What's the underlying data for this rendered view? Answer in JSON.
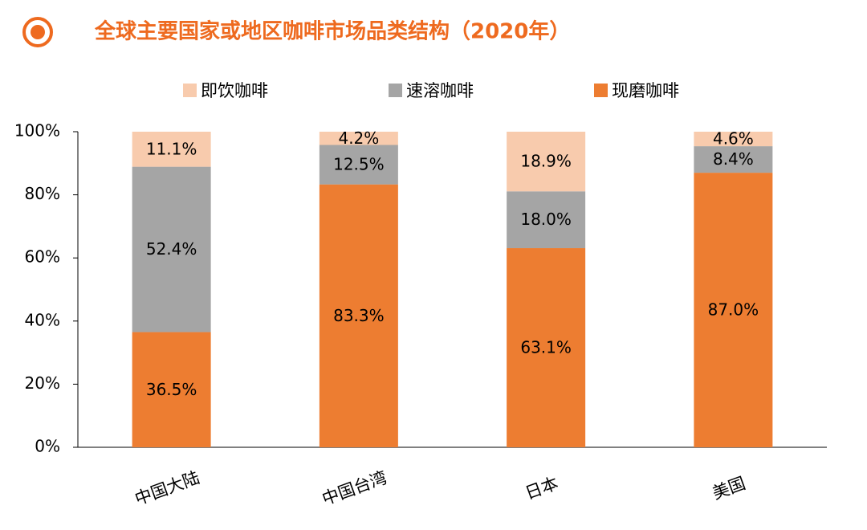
{
  "chart_data": {
    "type": "stacked_bar",
    "title": "全球主要国家或地区咖啡市场品类结构（2020年）",
    "categories": [
      "中国大陆",
      "中国台湾",
      "日本",
      "美国"
    ],
    "series": [
      {
        "name": "即饮咖啡",
        "color": "#F8CBAD",
        "values": [
          11.1,
          4.2,
          18.9,
          4.6
        ],
        "value_labels": [
          "11.1%",
          "4.2%",
          "18.9%",
          "4.6%"
        ]
      },
      {
        "name": "速溶咖啡",
        "color": "#A5A5A5",
        "values": [
          52.4,
          12.5,
          18.0,
          8.4
        ],
        "value_labels": [
          "52.4%",
          "12.5%",
          "18.0%",
          "8.4%"
        ]
      },
      {
        "name": "现磨咖啡",
        "color": "#ED7D31",
        "values": [
          36.5,
          83.3,
          63.1,
          87.0
        ],
        "value_labels": [
          "36.5%",
          "83.3%",
          "63.1%",
          "87.0%"
        ]
      }
    ],
    "ylim": [
      0,
      100
    ],
    "yticks": [
      {
        "value": 0,
        "label": "0%"
      },
      {
        "value": 20,
        "label": "20%"
      },
      {
        "value": 40,
        "label": "40%"
      },
      {
        "value": 60,
        "label": "60%"
      },
      {
        "value": 80,
        "label": "80%"
      },
      {
        "value": 100,
        "label": "100%"
      }
    ],
    "legend": "top"
  }
}
